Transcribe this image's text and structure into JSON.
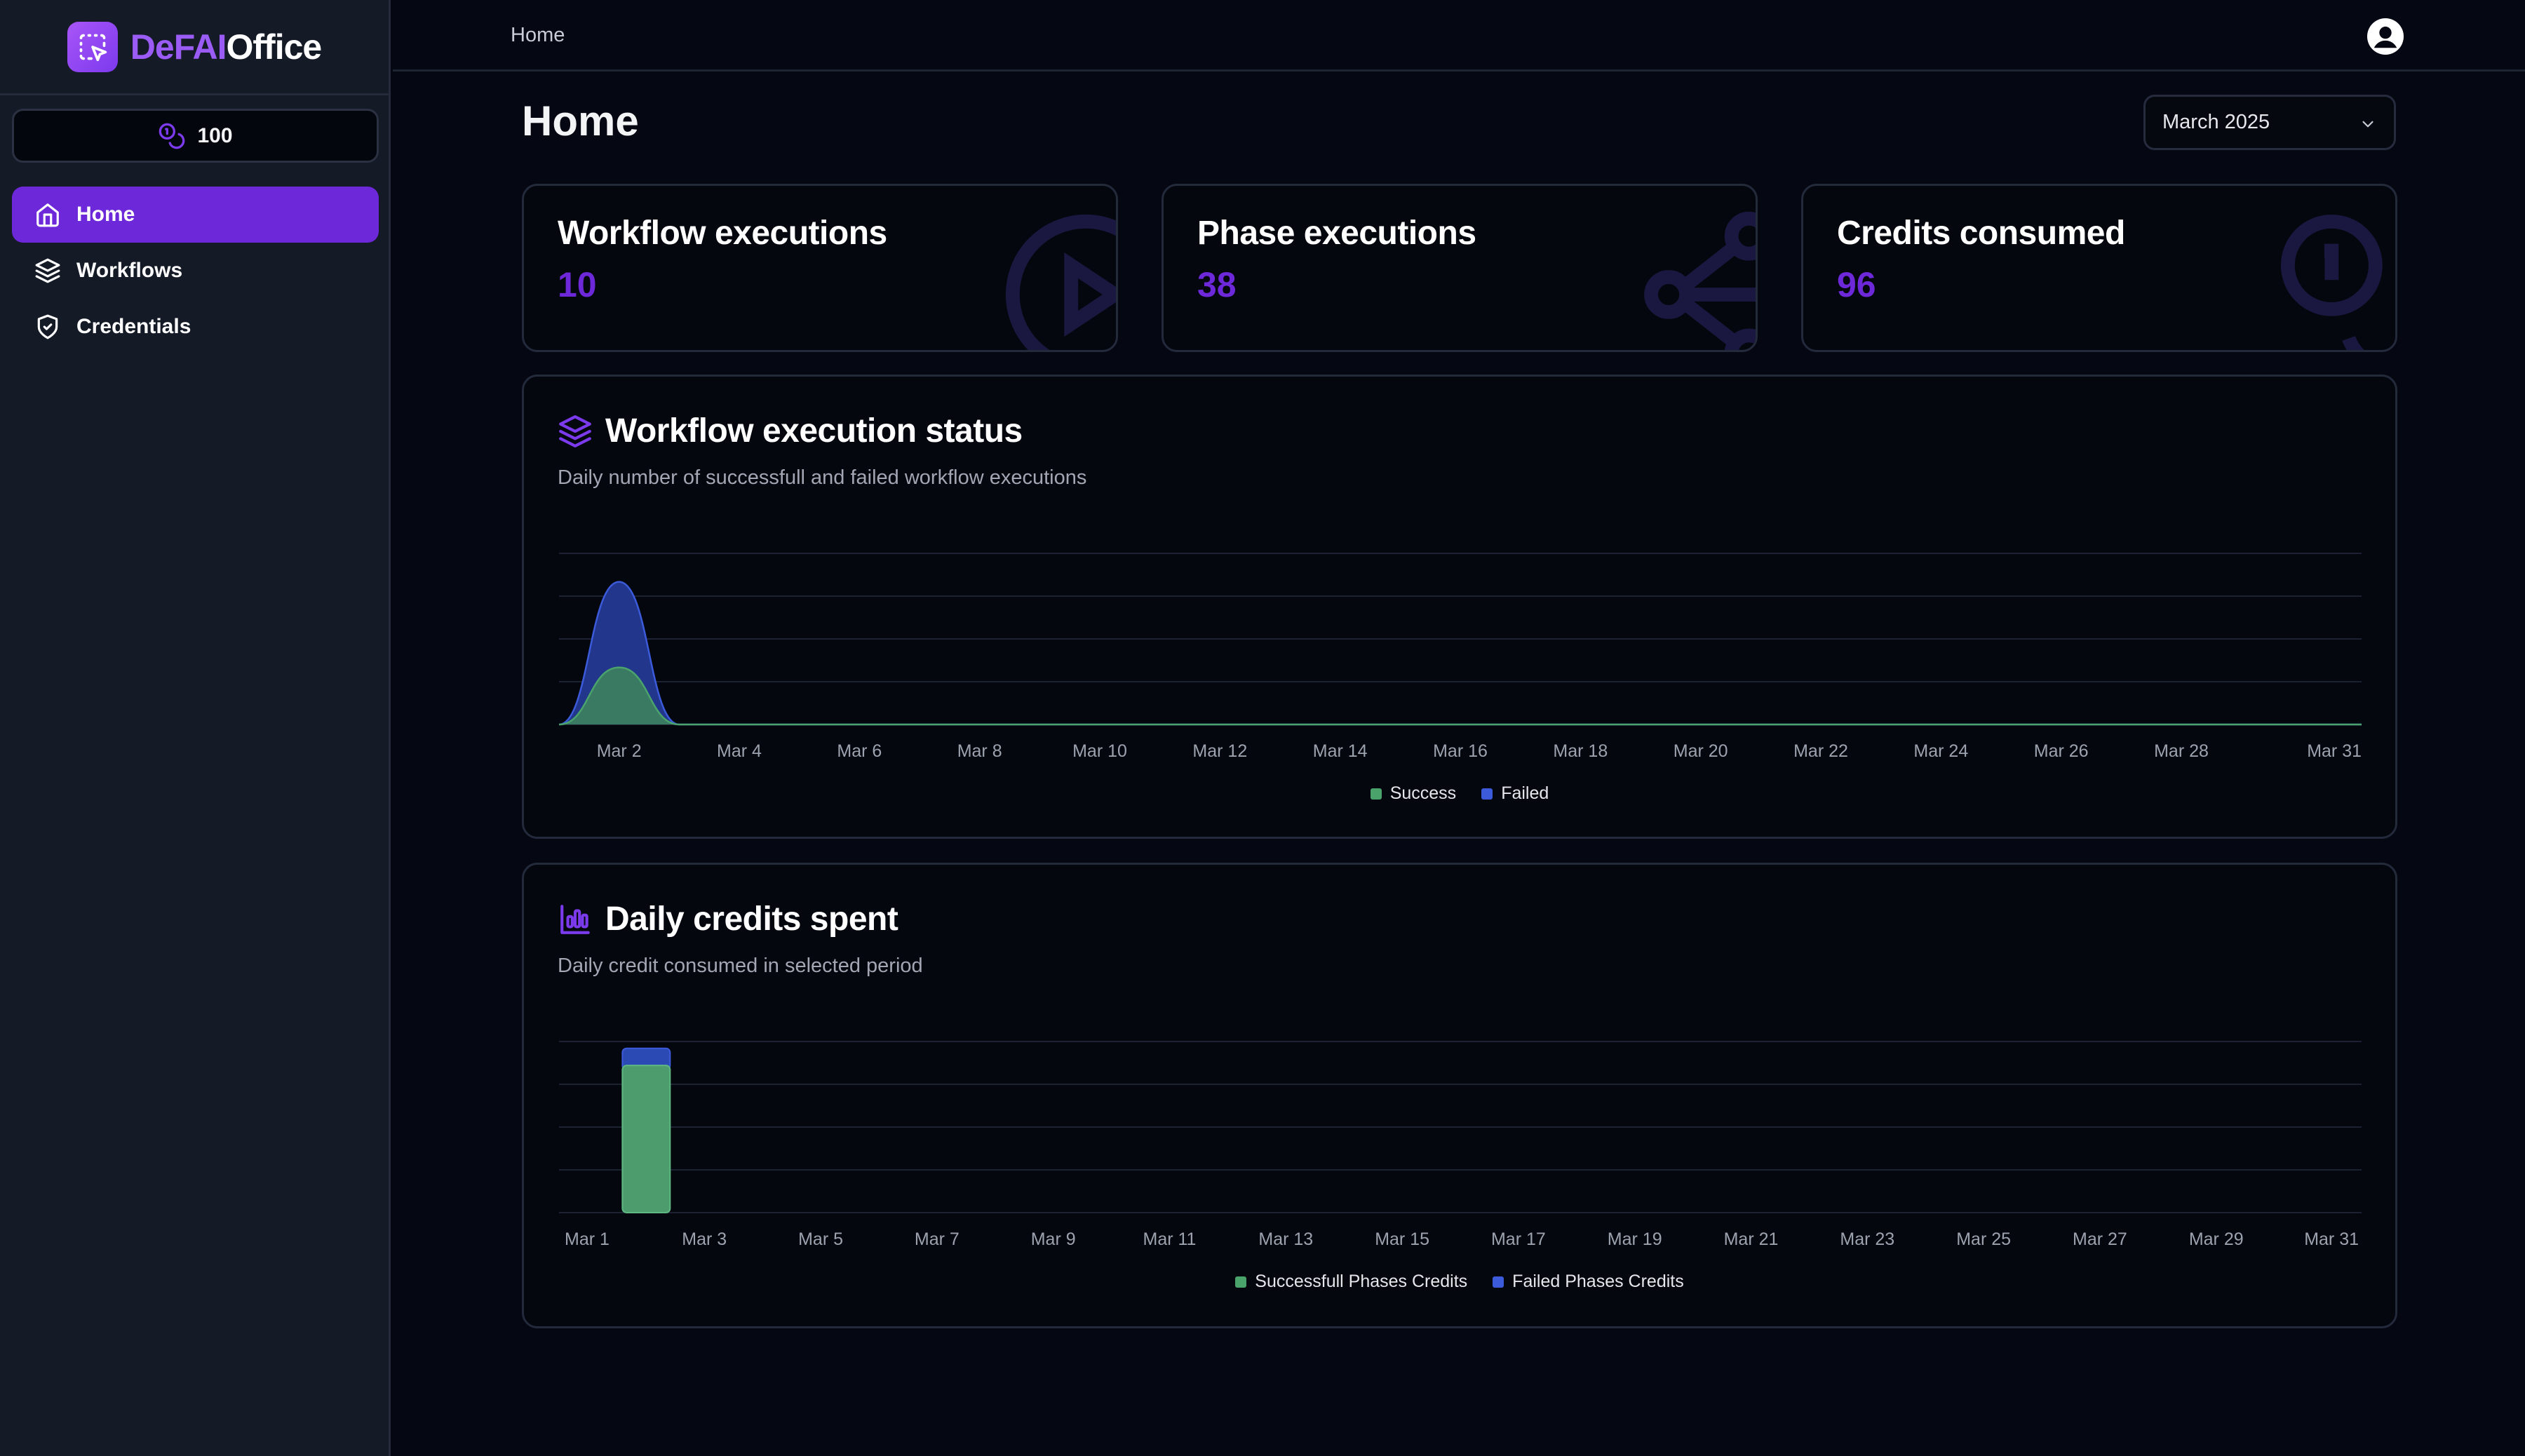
{
  "app": {
    "brand_part1": "DeFAI",
    "brand_part2": "Office",
    "credits": "100"
  },
  "sidebar": {
    "items": [
      {
        "label": "Home",
        "icon": "home-icon",
        "active": true
      },
      {
        "label": "Workflows",
        "icon": "layers-icon",
        "active": false
      },
      {
        "label": "Credentials",
        "icon": "shield-check-icon",
        "active": false
      }
    ]
  },
  "header": {
    "breadcrumb": "Home",
    "page_title": "Home",
    "period_select": "March 2025"
  },
  "stats": [
    {
      "title": "Workflow executions",
      "value": "10",
      "icon": "play-circle-icon"
    },
    {
      "title": "Phase executions",
      "value": "38",
      "icon": "waypoints-icon"
    },
    {
      "title": "Credits consumed",
      "value": "96",
      "icon": "coins-icon"
    }
  ],
  "colors": {
    "accent": "#6d28d9",
    "success": "#4ade80",
    "failed": "#3b5bdb"
  },
  "charts": {
    "status": {
      "title": "Workflow execution status",
      "subtitle": "Daily number of successfull and failed workflow executions",
      "legend": [
        "Success",
        "Failed"
      ]
    },
    "credits": {
      "title": "Daily credits spent",
      "subtitle": "Daily credit consumed in selected period",
      "legend": [
        "Successfull Phases Credits",
        "Failed Phases Credits"
      ]
    }
  },
  "chart_data": [
    {
      "type": "area",
      "title": "Workflow execution status",
      "stacked": true,
      "x": [
        "Mar 1",
        "Mar 2",
        "Mar 3",
        "Mar 4",
        "Mar 5",
        "Mar 6",
        "Mar 7",
        "Mar 8",
        "Mar 9",
        "Mar 10",
        "Mar 11",
        "Mar 12",
        "Mar 13",
        "Mar 14",
        "Mar 15",
        "Mar 16",
        "Mar 17",
        "Mar 18",
        "Mar 19",
        "Mar 20",
        "Mar 21",
        "Mar 22",
        "Mar 23",
        "Mar 24",
        "Mar 25",
        "Mar 26",
        "Mar 27",
        "Mar 28",
        "Mar 29",
        "Mar 30",
        "Mar 31"
      ],
      "x_tick_labels": [
        "Mar 2",
        "Mar 4",
        "Mar 6",
        "Mar 8",
        "Mar 10",
        "Mar 12",
        "Mar 14",
        "Mar 16",
        "Mar 18",
        "Mar 20",
        "Mar 22",
        "Mar 24",
        "Mar 26",
        "Mar 28",
        "Mar 31"
      ],
      "series": [
        {
          "name": "Success",
          "values": [
            0,
            4,
            0,
            0,
            0,
            0,
            0,
            0,
            0,
            0,
            0,
            0,
            0,
            0,
            0,
            0,
            0,
            0,
            0,
            0,
            0,
            0,
            0,
            0,
            0,
            0,
            0,
            0,
            0,
            0,
            0
          ]
        },
        {
          "name": "Failed",
          "values": [
            0,
            6,
            0,
            0,
            0,
            0,
            0,
            0,
            0,
            0,
            0,
            0,
            0,
            0,
            0,
            0,
            0,
            0,
            0,
            0,
            0,
            0,
            0,
            0,
            0,
            0,
            0,
            0,
            0,
            0,
            0
          ]
        }
      ],
      "ylim": [
        0,
        12
      ],
      "grid": true,
      "legend_position": "bottom"
    },
    {
      "type": "bar",
      "title": "Daily credits spent",
      "stacked": true,
      "x": [
        "Mar 1",
        "Mar 2",
        "Mar 3",
        "Mar 4",
        "Mar 5",
        "Mar 6",
        "Mar 7",
        "Mar 8",
        "Mar 9",
        "Mar 10",
        "Mar 11",
        "Mar 12",
        "Mar 13",
        "Mar 14",
        "Mar 15",
        "Mar 16",
        "Mar 17",
        "Mar 18",
        "Mar 19",
        "Mar 20",
        "Mar 21",
        "Mar 22",
        "Mar 23",
        "Mar 24",
        "Mar 25",
        "Mar 26",
        "Mar 27",
        "Mar 28",
        "Mar 29",
        "Mar 30",
        "Mar 31"
      ],
      "x_tick_labels": [
        "Mar 1",
        "Mar 3",
        "Mar 5",
        "Mar 7",
        "Mar 9",
        "Mar 11",
        "Mar 13",
        "Mar 15",
        "Mar 17",
        "Mar 19",
        "Mar 21",
        "Mar 23",
        "Mar 25",
        "Mar 27",
        "Mar 29",
        "Mar 31"
      ],
      "series": [
        {
          "name": "Successfull Phases Credits",
          "values": [
            0,
            86,
            0,
            0,
            0,
            0,
            0,
            0,
            0,
            0,
            0,
            0,
            0,
            0,
            0,
            0,
            0,
            0,
            0,
            0,
            0,
            0,
            0,
            0,
            0,
            0,
            0,
            0,
            0,
            0,
            0
          ]
        },
        {
          "name": "Failed Phases Credits",
          "values": [
            0,
            10,
            0,
            0,
            0,
            0,
            0,
            0,
            0,
            0,
            0,
            0,
            0,
            0,
            0,
            0,
            0,
            0,
            0,
            0,
            0,
            0,
            0,
            0,
            0,
            0,
            0,
            0,
            0,
            0,
            0
          ]
        }
      ],
      "ylim": [
        0,
        100
      ],
      "grid": true,
      "legend_position": "bottom"
    }
  ]
}
